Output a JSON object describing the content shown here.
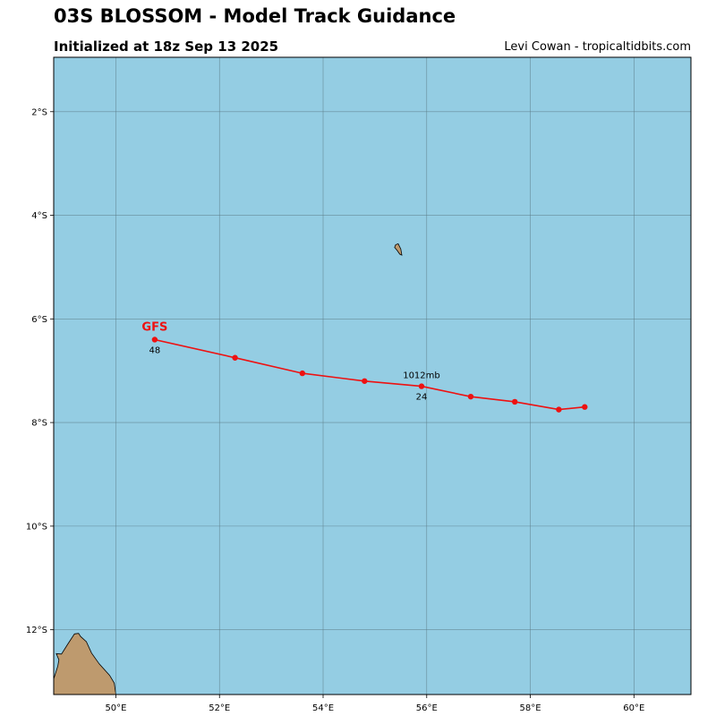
{
  "header": {
    "title": "03S BLOSSOM - Model Track Guidance",
    "subtitle": "Initialized at 18z Sep 13 2025",
    "credit": "Levi Cowan - tropicaltidbits.com"
  },
  "colors": {
    "ocean": "#94cde3",
    "land": "#be9a6e",
    "grid": "#5a7a86",
    "track": "#ee1111"
  },
  "chart_data": {
    "type": "map",
    "lon_range": [
      48.8,
      61.1
    ],
    "lat_range": [
      -13.25,
      -0.95
    ],
    "x_ticks": [
      {
        "value": 50,
        "label": "50°E"
      },
      {
        "value": 52,
        "label": "52°E"
      },
      {
        "value": 54,
        "label": "54°E"
      },
      {
        "value": 56,
        "label": "56°E"
      },
      {
        "value": 58,
        "label": "58°E"
      },
      {
        "value": 60,
        "label": "60°E"
      }
    ],
    "y_ticks": [
      {
        "value": -2,
        "label": "2°S"
      },
      {
        "value": -4,
        "label": "4°S"
      },
      {
        "value": -6,
        "label": "6°S"
      },
      {
        "value": -8,
        "label": "8°S"
      },
      {
        "value": -10,
        "label": "10°S"
      },
      {
        "value": -12,
        "label": "12°S"
      }
    ],
    "grid": true,
    "tracks": [
      {
        "model": "GFS",
        "points": [
          {
            "lon": 59.05,
            "lat": -7.7
          },
          {
            "lon": 58.55,
            "lat": -7.75
          },
          {
            "lon": 57.7,
            "lat": -7.6
          },
          {
            "lon": 56.85,
            "lat": -7.5
          },
          {
            "lon": 55.9,
            "lat": -7.3
          },
          {
            "lon": 54.8,
            "lat": -7.2
          },
          {
            "lon": 53.6,
            "lat": -7.05
          },
          {
            "lon": 52.3,
            "lat": -6.75
          },
          {
            "lon": 50.75,
            "lat": -6.4
          }
        ],
        "annotations": [
          {
            "point_index": 4,
            "hour_label": "24",
            "pressure_label": "1012mb"
          },
          {
            "point_index": 8,
            "hour_label": "48"
          }
        ]
      }
    ],
    "land": [
      {
        "name": "island",
        "coords": [
          [
            55.4,
            -4.57
          ],
          [
            55.45,
            -4.55
          ],
          [
            55.5,
            -4.65
          ],
          [
            55.52,
            -4.77
          ],
          [
            55.48,
            -4.75
          ],
          [
            55.43,
            -4.68
          ],
          [
            55.38,
            -4.62
          ]
        ]
      },
      {
        "name": "landmass",
        "coords": [
          [
            48.8,
            -13.25
          ],
          [
            48.8,
            -12.95
          ],
          [
            48.88,
            -12.7
          ],
          [
            48.9,
            -12.58
          ],
          [
            48.85,
            -12.46
          ],
          [
            48.95,
            -12.47
          ],
          [
            49.07,
            -12.28
          ],
          [
            49.2,
            -12.08
          ],
          [
            49.28,
            -12.07
          ],
          [
            49.32,
            -12.13
          ],
          [
            49.43,
            -12.23
          ],
          [
            49.53,
            -12.45
          ],
          [
            49.68,
            -12.66
          ],
          [
            49.88,
            -12.88
          ],
          [
            49.97,
            -13.03
          ],
          [
            50.0,
            -13.25
          ]
        ]
      }
    ]
  }
}
